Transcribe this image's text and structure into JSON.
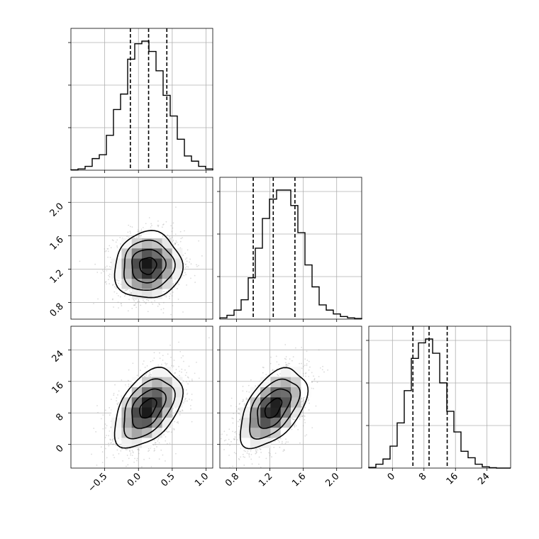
{
  "chart_data": {
    "type": "corner",
    "parameters": [
      {
        "id": "p0",
        "range": [
          -1.0,
          1.1
        ],
        "ticks": [
          -0.5,
          0.0,
          0.5,
          1.0
        ],
        "tick_labels": [
          "−0.5",
          "0.0",
          "0.5",
          "1.0"
        ],
        "quantiles": [
          -0.12,
          0.15,
          0.42
        ]
      },
      {
        "id": "p1",
        "range": [
          0.6,
          2.3
        ],
        "ticks": [
          0.8,
          1.2,
          1.6,
          2.0
        ],
        "tick_labels": [
          "0.8",
          "1.2",
          "1.6",
          "2.0"
        ],
        "quantiles": [
          1.0,
          1.24,
          1.5
        ]
      },
      {
        "id": "p2",
        "range": [
          -6,
          30
        ],
        "ticks": [
          0,
          8,
          16,
          24
        ],
        "tick_labels": [
          "0",
          "8",
          "16",
          "24"
        ],
        "quantiles": [
          5.2,
          9.3,
          13.9
        ]
      }
    ],
    "histograms": [
      {
        "param": 0,
        "counts": [
          0.003,
          0.01,
          0.03,
          0.09,
          0.12,
          0.27,
          0.47,
          0.59,
          0.86,
          0.98,
          1.0,
          0.92,
          0.77,
          0.58,
          0.42,
          0.24,
          0.11,
          0.07,
          0.03,
          0.01
        ]
      },
      {
        "param": 1,
        "counts": [
          0.01,
          0.03,
          0.07,
          0.15,
          0.32,
          0.55,
          0.78,
          0.93,
          1.0,
          1.0,
          0.88,
          0.67,
          0.42,
          0.25,
          0.11,
          0.07,
          0.04,
          0.02,
          0.01,
          0.005
        ]
      },
      {
        "param": 2,
        "counts": [
          0.005,
          0.03,
          0.07,
          0.17,
          0.35,
          0.6,
          0.85,
          0.97,
          1.0,
          0.89,
          0.66,
          0.44,
          0.28,
          0.13,
          0.08,
          0.03,
          0.01,
          0.003,
          0.0,
          0.0
        ]
      }
    ],
    "joint_panels": [
      {
        "x_param": 0,
        "y_param": 1,
        "mean": [
          0.14,
          1.24
        ],
        "std": [
          0.25,
          0.2
        ],
        "correlation": 0.05,
        "contour_levels_sigma": [
          0.5,
          1.0,
          1.5,
          2.0
        ]
      },
      {
        "x_param": 0,
        "y_param": 2,
        "mean": [
          0.14,
          9.2
        ],
        "std": [
          0.25,
          5.0
        ],
        "correlation": 0.45,
        "contour_levels_sigma": [
          0.5,
          1.0,
          1.5,
          2.0
        ]
      },
      {
        "x_param": 1,
        "y_param": 2,
        "mean": [
          1.24,
          9.2
        ],
        "std": [
          0.2,
          5.0
        ],
        "correlation": 0.5,
        "contour_levels_sigma": [
          0.5,
          1.0,
          1.5,
          2.0
        ]
      }
    ],
    "colors": {
      "density_dark": "#000000",
      "density_light": "#ffffff",
      "points": "#999999",
      "grid": "#b0b0b0"
    },
    "grid": true
  }
}
